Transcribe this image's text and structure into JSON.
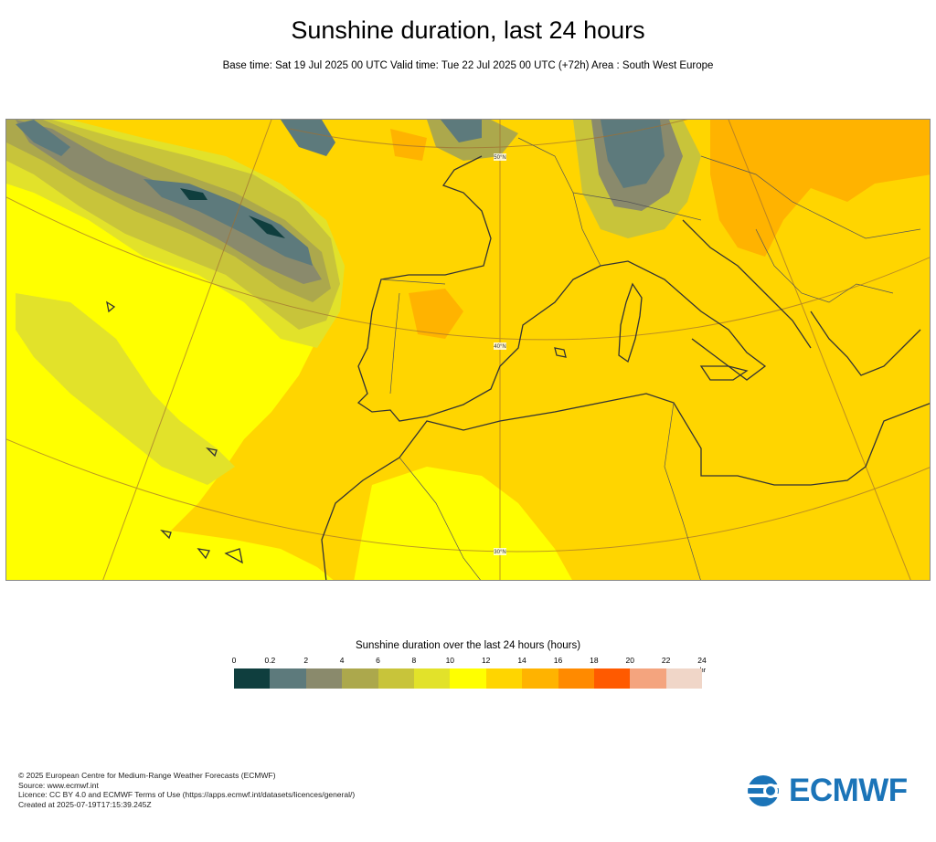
{
  "header": {
    "title": "Sunshine duration, last 24 hours",
    "subtitle": "Base time: Sat 19 Jul 2025 00 UTC Valid time: Tue 22 Jul 2025 00 UTC (+72h) Area : South West Europe"
  },
  "map": {
    "area": "South West Europe",
    "graticule_labels": [
      "50°N",
      "40°N",
      "30°N"
    ]
  },
  "legend": {
    "title": "Sunshine duration over the last 24 hours (hours)",
    "ticks": [
      "0",
      "0.2",
      "2",
      "4",
      "6",
      "8",
      "10",
      "12",
      "14",
      "16",
      "18",
      "20",
      "22",
      "24"
    ],
    "unit": "-hr",
    "colors": [
      "#0f3e3e",
      "#5d7a7c",
      "#8a8a6c",
      "#aca84c",
      "#c8c43a",
      "#e2e22a",
      "#ffff00",
      "#ffd500",
      "#ffb300",
      "#ff8a00",
      "#ff5a00",
      "#f4a47e",
      "#f0d6c8"
    ]
  },
  "footer": {
    "lines": [
      "© 2025 European Centre for Medium-Range Weather Forecasts (ECMWF)",
      "Source: www.ecmwf.int",
      "Licence: CC BY 4.0 and ECMWF Terms of Use (https://apps.ecmwf.int/datasets/licences/general/)",
      "Created at 2025-07-19T17:15:39.245Z"
    ]
  },
  "logo": {
    "text": "ECMWF",
    "color": "#1b74b8"
  }
}
